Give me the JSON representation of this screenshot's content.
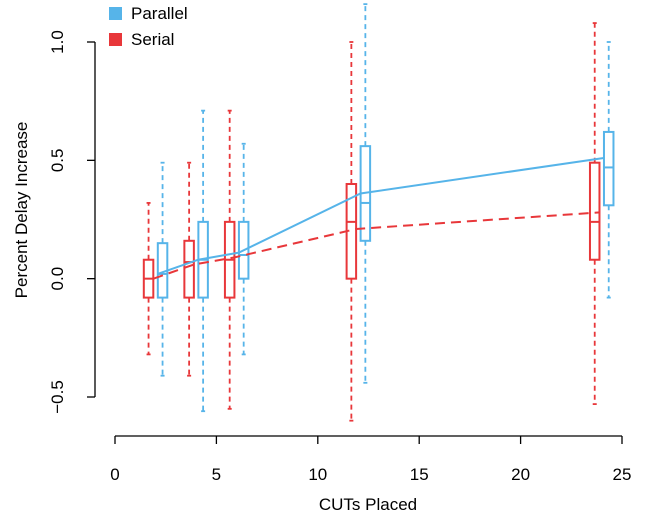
{
  "chart_data": {
    "type": "box",
    "xlabel": "CUTs Placed",
    "ylabel": "Percent Delay Increase",
    "xlim": [
      0,
      25
    ],
    "ylim": [
      -0.5,
      1.0
    ],
    "x_ticks": [
      0,
      5,
      10,
      15,
      20,
      25
    ],
    "y_ticks": [
      -0.5,
      0.0,
      0.5,
      1.0
    ],
    "x_tick_labels": [
      "0",
      "5",
      "10",
      "15",
      "20",
      "25"
    ],
    "y_tick_labels": [
      "−0.5",
      "0.0",
      "0.5",
      "1.0"
    ],
    "legend_position": "top-left",
    "grid": false,
    "series": [
      {
        "name": "Parallel",
        "color": "#56b4e9",
        "line_style": "solid",
        "boxes": [
          {
            "x": 2,
            "whisker_low": -0.41,
            "q1": -0.08,
            "median": 0.02,
            "q3": 0.15,
            "whisker_high": 0.49
          },
          {
            "x": 4,
            "whisker_low": -0.56,
            "q1": -0.08,
            "median": 0.08,
            "q3": 0.24,
            "whisker_high": 0.71
          },
          {
            "x": 6,
            "whisker_low": -0.32,
            "q1": 0.0,
            "median": 0.1,
            "q3": 0.24,
            "whisker_high": 0.57
          },
          {
            "x": 12,
            "whisker_low": -0.44,
            "q1": 0.16,
            "median": 0.32,
            "q3": 0.56,
            "whisker_high": 1.16
          },
          {
            "x": 24,
            "whisker_low": -0.08,
            "q1": 0.31,
            "median": 0.47,
            "q3": 0.62,
            "whisker_high": 1.0
          }
        ],
        "mean_line": {
          "x": [
            2,
            4,
            6,
            12,
            24
          ],
          "y": [
            0.02,
            0.08,
            0.11,
            0.36,
            0.51
          ]
        }
      },
      {
        "name": "Serial",
        "color": "#e8373a",
        "line_style": "dashed",
        "boxes": [
          {
            "x": 2,
            "whisker_low": -0.32,
            "q1": -0.08,
            "median": 0.0,
            "q3": 0.08,
            "whisker_high": 0.32
          },
          {
            "x": 4,
            "whisker_low": -0.41,
            "q1": -0.08,
            "median": 0.07,
            "q3": 0.16,
            "whisker_high": 0.49
          },
          {
            "x": 6,
            "whisker_low": -0.55,
            "q1": -0.08,
            "median": 0.08,
            "q3": 0.24,
            "whisker_high": 0.71
          },
          {
            "x": 12,
            "whisker_low": -0.6,
            "q1": 0.0,
            "median": 0.24,
            "q3": 0.4,
            "whisker_high": 1.0
          },
          {
            "x": 24,
            "whisker_low": -0.53,
            "q1": 0.08,
            "median": 0.24,
            "q3": 0.49,
            "whisker_high": 1.08
          }
        ],
        "mean_line": {
          "x": [
            2,
            4,
            6,
            12,
            24
          ],
          "y": [
            0.0,
            0.06,
            0.09,
            0.21,
            0.28
          ]
        }
      }
    ]
  }
}
